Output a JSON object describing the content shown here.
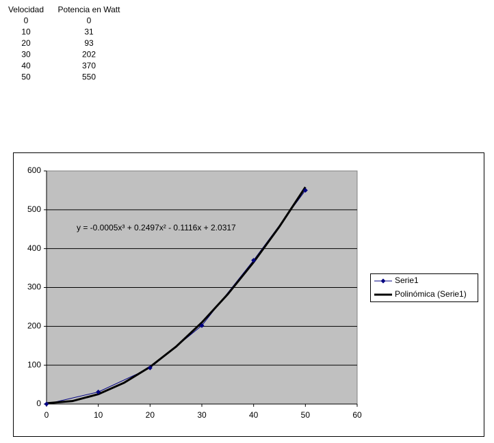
{
  "table": {
    "headers": [
      "Velocidad",
      "Potencia en Watt"
    ],
    "rows": [
      [
        0,
        0
      ],
      [
        10,
        31
      ],
      [
        20,
        93
      ],
      [
        30,
        202
      ],
      [
        40,
        370
      ],
      [
        50,
        550
      ]
    ]
  },
  "chart_data": {
    "type": "line",
    "trendline_equation": "y = -0.0005x³ + 0.2497x² - 0.1116x + 2.0317",
    "xlim": [
      0,
      60
    ],
    "xticks": [
      0,
      10,
      20,
      30,
      40,
      50,
      60
    ],
    "ylim": [
      0,
      600
    ],
    "yticks": [
      0,
      100,
      200,
      300,
      400,
      500,
      600
    ],
    "grid": true,
    "legend": "right",
    "series": [
      {
        "name": "Serie1",
        "color": "#000080",
        "x": [
          0,
          10,
          20,
          30,
          40,
          50
        ],
        "values": [
          0,
          31,
          93,
          202,
          370,
          550
        ]
      },
      {
        "name": "Polinómica (Serie1)",
        "color": "#000000",
        "x": [
          0,
          5,
          10,
          15,
          20,
          25,
          30,
          35,
          40,
          45,
          50
        ],
        "values": [
          2.03,
          7.65,
          25.39,
          54.85,
          95.68,
          147.49,
          209.91,
          282.57,
          365.09,
          457.09,
          558.2
        ]
      }
    ]
  }
}
